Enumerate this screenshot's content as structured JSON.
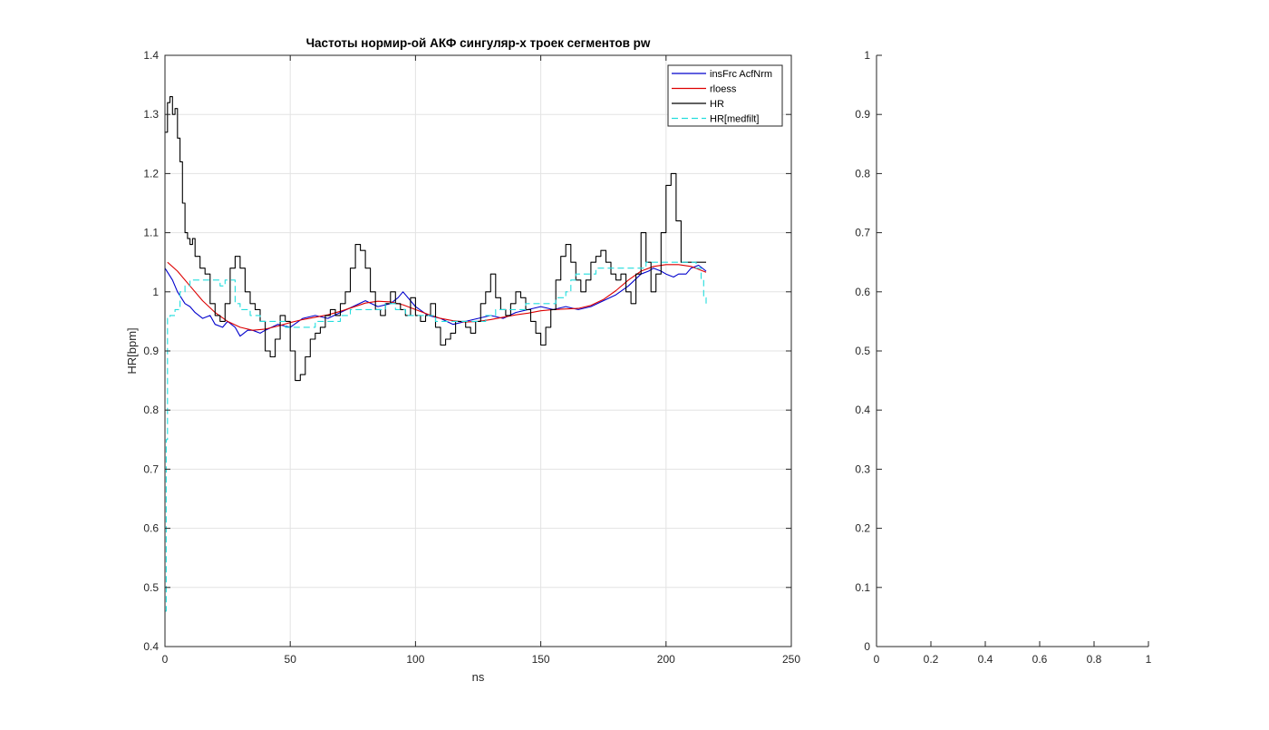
{
  "chart_data": [
    {
      "type": "line",
      "title": "Частоты нормир-ой АКФ сингуляр-х троек сегментов pw",
      "xlabel": "ns",
      "ylabel": "HR[bpm]",
      "xlim": [
        0,
        250
      ],
      "ylim": [
        0.4,
        1.4
      ],
      "xticks": [
        0,
        50,
        100,
        150,
        200,
        250
      ],
      "xtick_labels": [
        "0",
        "50",
        "100",
        "150",
        "200",
        "250"
      ],
      "yticks": [
        0.4,
        0.5,
        0.6,
        0.7,
        0.8,
        0.9,
        1.0,
        1.1,
        1.2,
        1.3,
        1.4
      ],
      "ytick_labels": [
        "0.4",
        "0.5",
        "0.6",
        "0.7",
        "0.8",
        "0.9",
        "1",
        "1.1",
        "1.2",
        "1.3",
        "1.4"
      ],
      "grid": true,
      "legend_location": "top-right",
      "series": [
        {
          "name": "insFrc AcfNrm",
          "color": "#0000cc",
          "dash": "solid",
          "step": false,
          "x": [
            0,
            3,
            5,
            8,
            10,
            12,
            15,
            18,
            20,
            23,
            25,
            28,
            30,
            33,
            35,
            38,
            40,
            45,
            50,
            55,
            60,
            65,
            70,
            75,
            80,
            85,
            90,
            93,
            95,
            100,
            105,
            110,
            115,
            120,
            125,
            130,
            135,
            140,
            145,
            150,
            155,
            160,
            165,
            170,
            175,
            180,
            185,
            190,
            193,
            195,
            198,
            200,
            203,
            205,
            208,
            210,
            213,
            216
          ],
          "y": [
            1.04,
            1.02,
            1.0,
            0.98,
            0.975,
            0.965,
            0.955,
            0.96,
            0.945,
            0.94,
            0.95,
            0.94,
            0.925,
            0.935,
            0.935,
            0.93,
            0.935,
            0.945,
            0.94,
            0.955,
            0.96,
            0.955,
            0.965,
            0.975,
            0.985,
            0.975,
            0.98,
            0.99,
            1.0,
            0.975,
            0.96,
            0.955,
            0.945,
            0.95,
            0.955,
            0.96,
            0.955,
            0.965,
            0.97,
            0.975,
            0.97,
            0.975,
            0.97,
            0.975,
            0.985,
            0.995,
            1.01,
            1.03,
            1.035,
            1.04,
            1.035,
            1.03,
            1.025,
            1.03,
            1.03,
            1.04,
            1.045,
            1.035
          ]
        },
        {
          "name": "rloess",
          "color": "#dd0000",
          "dash": "solid",
          "step": false,
          "x": [
            1,
            5,
            10,
            15,
            20,
            25,
            30,
            35,
            40,
            45,
            50,
            55,
            60,
            65,
            70,
            75,
            80,
            85,
            90,
            95,
            100,
            105,
            110,
            115,
            120,
            125,
            130,
            135,
            140,
            145,
            150,
            155,
            160,
            165,
            170,
            175,
            180,
            185,
            190,
            195,
            200,
            205,
            210,
            216
          ],
          "y": [
            1.05,
            1.035,
            1.01,
            0.985,
            0.965,
            0.95,
            0.94,
            0.935,
            0.937,
            0.942,
            0.948,
            0.953,
            0.957,
            0.961,
            0.967,
            0.974,
            0.981,
            0.984,
            0.983,
            0.978,
            0.97,
            0.962,
            0.955,
            0.951,
            0.949,
            0.95,
            0.953,
            0.957,
            0.961,
            0.964,
            0.968,
            0.97,
            0.971,
            0.972,
            0.977,
            0.987,
            1.002,
            1.02,
            1.035,
            1.043,
            1.046,
            1.046,
            1.043,
            1.033
          ]
        },
        {
          "name": "HR",
          "color": "#000000",
          "dash": "solid",
          "step": true,
          "x": [
            0,
            1,
            2,
            3,
            4,
            5,
            6,
            7,
            8,
            9,
            10,
            11,
            12,
            14,
            16,
            18,
            20,
            22,
            24,
            26,
            28,
            30,
            32,
            34,
            36,
            38,
            40,
            42,
            44,
            46,
            48,
            50,
            52,
            54,
            56,
            58,
            60,
            62,
            64,
            66,
            68,
            70,
            72,
            74,
            76,
            78,
            80,
            82,
            84,
            86,
            88,
            90,
            92,
            94,
            96,
            98,
            100,
            102,
            104,
            106,
            108,
            110,
            112,
            114,
            116,
            118,
            120,
            122,
            124,
            126,
            128,
            130,
            132,
            134,
            136,
            138,
            140,
            142,
            144,
            146,
            148,
            150,
            152,
            154,
            156,
            158,
            160,
            162,
            164,
            166,
            168,
            170,
            172,
            174,
            176,
            178,
            180,
            182,
            184,
            186,
            188,
            190,
            192,
            194,
            196,
            198,
            200,
            202,
            204,
            206,
            208,
            210,
            212,
            214,
            216
          ],
          "y": [
            1.27,
            1.32,
            1.33,
            1.3,
            1.31,
            1.26,
            1.22,
            1.15,
            1.1,
            1.09,
            1.08,
            1.09,
            1.06,
            1.04,
            1.03,
            0.98,
            0.96,
            0.95,
            0.98,
            1.04,
            1.06,
            1.04,
            1.0,
            0.98,
            0.97,
            0.95,
            0.9,
            0.89,
            0.92,
            0.96,
            0.95,
            0.9,
            0.85,
            0.86,
            0.89,
            0.92,
            0.93,
            0.94,
            0.96,
            0.97,
            0.96,
            0.98,
            1.0,
            1.04,
            1.08,
            1.07,
            1.04,
            1.0,
            0.97,
            0.96,
            0.98,
            1.0,
            0.98,
            0.97,
            0.96,
            0.99,
            0.96,
            0.95,
            0.96,
            0.98,
            0.94,
            0.91,
            0.92,
            0.93,
            0.95,
            0.95,
            0.94,
            0.93,
            0.95,
            0.98,
            1.0,
            1.03,
            0.99,
            0.97,
            0.96,
            0.98,
            1.0,
            0.99,
            0.97,
            0.95,
            0.93,
            0.91,
            0.94,
            0.97,
            1.02,
            1.06,
            1.08,
            1.05,
            1.02,
            1.0,
            1.02,
            1.05,
            1.06,
            1.07,
            1.05,
            1.03,
            1.02,
            1.03,
            1.0,
            0.98,
            1.03,
            1.1,
            1.05,
            1.0,
            1.03,
            1.1,
            1.18,
            1.2,
            1.12,
            1.05,
            1.05,
            1.05,
            1.05,
            1.05,
            1.05
          ]
        },
        {
          "name": "HR[medfilt]",
          "color": "#22dddd",
          "dash": "dashed",
          "step": true,
          "x": [
            0,
            0.5,
            1,
            2,
            4,
            6,
            8,
            10,
            12,
            16,
            20,
            22,
            24,
            28,
            30,
            34,
            38,
            40,
            44,
            48,
            52,
            56,
            60,
            66,
            70,
            74,
            78,
            84,
            88,
            92,
            96,
            100,
            104,
            108,
            112,
            116,
            120,
            124,
            128,
            132,
            136,
            140,
            144,
            148,
            152,
            156,
            160,
            162,
            164,
            168,
            172,
            176,
            180,
            184,
            188,
            192,
            196,
            200,
            204,
            208,
            212,
            214,
            215,
            216
          ],
          "y": [
            0.46,
            0.75,
            0.955,
            0.96,
            0.97,
            1.0,
            1.01,
            1.02,
            1.02,
            1.02,
            1.02,
            1.01,
            1.02,
            0.98,
            0.97,
            0.96,
            0.95,
            0.95,
            0.95,
            0.94,
            0.94,
            0.94,
            0.95,
            0.95,
            0.96,
            0.97,
            0.97,
            0.97,
            0.98,
            0.97,
            0.96,
            0.96,
            0.96,
            0.95,
            0.95,
            0.95,
            0.95,
            0.95,
            0.96,
            0.97,
            0.97,
            0.97,
            0.98,
            0.98,
            0.98,
            0.99,
            1.0,
            1.02,
            1.03,
            1.03,
            1.04,
            1.04,
            1.04,
            1.04,
            1.04,
            1.05,
            1.05,
            1.05,
            1.05,
            1.05,
            1.04,
            1.02,
            0.99,
            0.98
          ]
        }
      ]
    },
    {
      "type": "line",
      "title": "",
      "xlabel": "",
      "ylabel": "",
      "xlim": [
        0,
        1
      ],
      "ylim": [
        0,
        1
      ],
      "xticks": [
        0,
        0.2,
        0.4,
        0.6,
        0.8,
        1
      ],
      "xtick_labels": [
        "0",
        "0.2",
        "0.4",
        "0.6",
        "0.8",
        "1"
      ],
      "yticks": [
        0,
        0.1,
        0.2,
        0.3,
        0.4,
        0.5,
        0.6,
        0.7,
        0.8,
        0.9,
        1
      ],
      "ytick_labels": [
        "0",
        "0.1",
        "0.2",
        "0.3",
        "0.4",
        "0.5",
        "0.6",
        "0.7",
        "0.8",
        "0.9",
        "1"
      ],
      "grid": false,
      "box": "left-bottom",
      "series": []
    }
  ]
}
